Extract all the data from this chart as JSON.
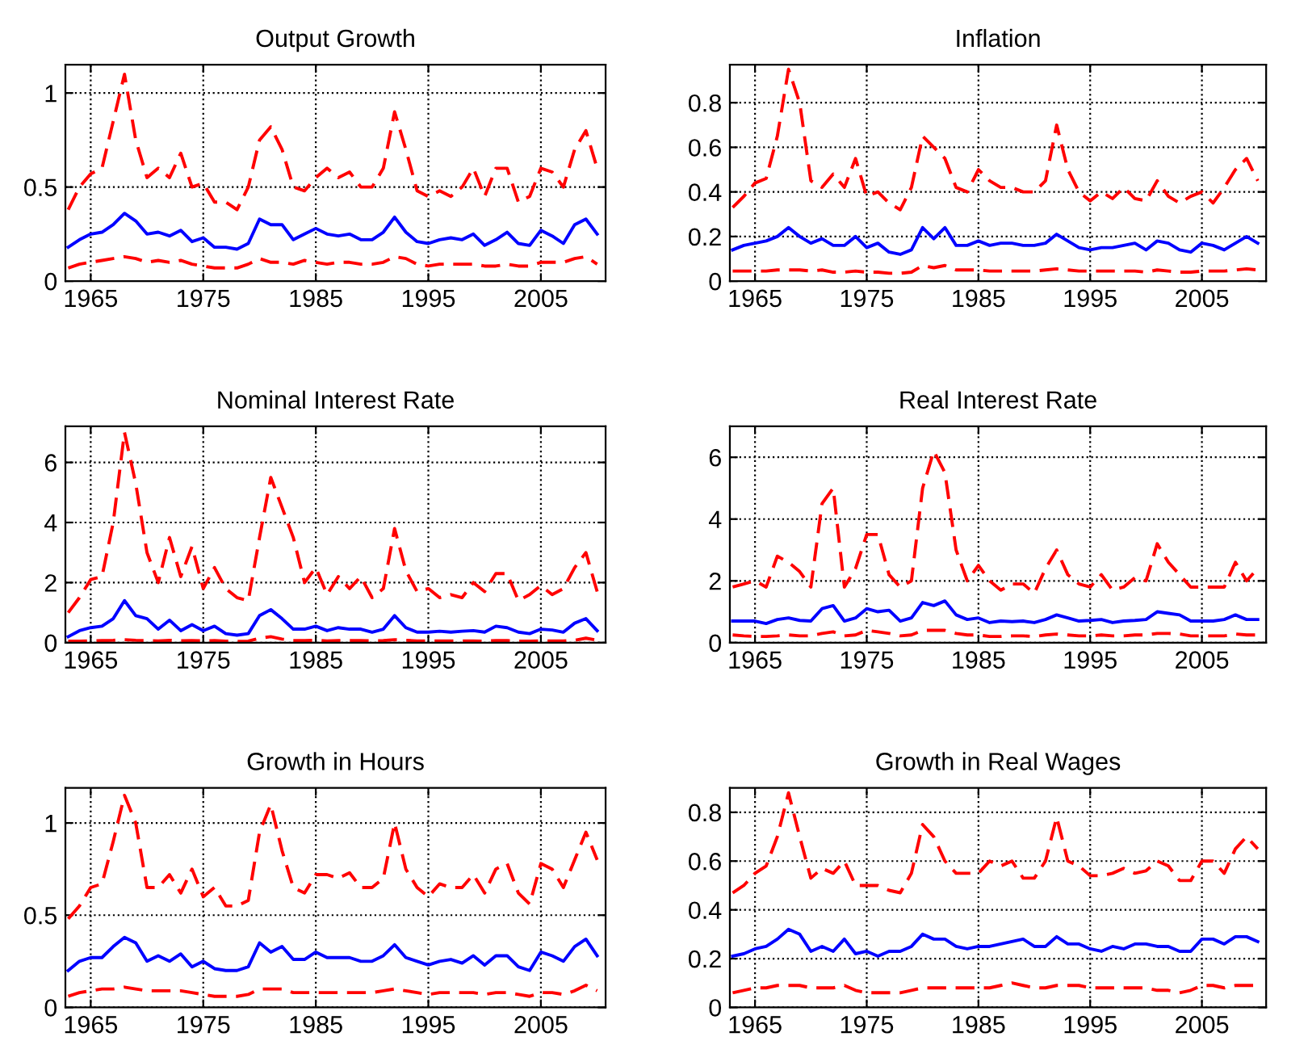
{
  "chart_data": [
    {
      "type": "line",
      "title": "Output Growth",
      "x": [
        1963,
        1964,
        1965,
        1966,
        1967,
        1968,
        1969,
        1970,
        1971,
        1972,
        1973,
        1974,
        1975,
        1976,
        1977,
        1978,
        1979,
        1980,
        1981,
        1982,
        1983,
        1984,
        1985,
        1986,
        1987,
        1988,
        1989,
        1990,
        1991,
        1992,
        1993,
        1994,
        1995,
        1996,
        1997,
        1998,
        1999,
        2000,
        2001,
        2002,
        2003,
        2004,
        2005,
        2006,
        2007,
        2008,
        2009,
        2010
      ],
      "xlim": [
        1962.75,
        2010.75
      ],
      "xticks": [
        1965,
        1975,
        1985,
        1995,
        2005
      ],
      "ylim": [
        0,
        1.15
      ],
      "yticks": [
        0,
        0.5,
        1
      ],
      "grid": true,
      "series": [
        {
          "color": "#ff0000",
          "line_style": "dashed",
          "values": [
            0.38,
            0.5,
            0.57,
            0.6,
            0.85,
            1.1,
            0.75,
            0.55,
            0.6,
            0.55,
            0.68,
            0.5,
            0.52,
            0.42,
            0.42,
            0.38,
            0.5,
            0.75,
            0.82,
            0.7,
            0.5,
            0.48,
            0.55,
            0.6,
            0.55,
            0.58,
            0.5,
            0.5,
            0.6,
            0.9,
            0.7,
            0.48,
            0.45,
            0.48,
            0.45,
            0.5,
            0.6,
            0.45,
            0.6,
            0.6,
            0.42,
            0.45,
            0.6,
            0.58,
            0.5,
            0.7,
            0.8,
            0.6
          ]
        },
        {
          "color": "#0000ff",
          "line_style": "solid",
          "values": [
            0.18,
            0.22,
            0.25,
            0.26,
            0.3,
            0.36,
            0.32,
            0.25,
            0.26,
            0.24,
            0.27,
            0.21,
            0.23,
            0.18,
            0.18,
            0.17,
            0.2,
            0.33,
            0.3,
            0.3,
            0.22,
            0.25,
            0.28,
            0.25,
            0.24,
            0.25,
            0.22,
            0.22,
            0.26,
            0.34,
            0.26,
            0.21,
            0.2,
            0.22,
            0.23,
            0.22,
            0.25,
            0.19,
            0.22,
            0.26,
            0.2,
            0.19,
            0.27,
            0.24,
            0.2,
            0.3,
            0.33,
            0.25
          ]
        },
        {
          "color": "#ff0000",
          "line_style": "dashed",
          "values": [
            0.07,
            0.09,
            0.1,
            0.11,
            0.12,
            0.13,
            0.12,
            0.1,
            0.11,
            0.1,
            0.11,
            0.09,
            0.08,
            0.07,
            0.07,
            0.07,
            0.09,
            0.12,
            0.1,
            0.1,
            0.09,
            0.11,
            0.1,
            0.09,
            0.1,
            0.1,
            0.09,
            0.09,
            0.1,
            0.13,
            0.12,
            0.09,
            0.08,
            0.09,
            0.09,
            0.09,
            0.09,
            0.08,
            0.08,
            0.09,
            0.08,
            0.08,
            0.1,
            0.1,
            0.1,
            0.12,
            0.13,
            0.09
          ]
        }
      ]
    },
    {
      "type": "line",
      "title": "Inflation",
      "x": [
        1963,
        1964,
        1965,
        1966,
        1967,
        1968,
        1969,
        1970,
        1971,
        1972,
        1973,
        1974,
        1975,
        1976,
        1977,
        1978,
        1979,
        1980,
        1981,
        1982,
        1983,
        1984,
        1985,
        1986,
        1987,
        1988,
        1989,
        1990,
        1991,
        1992,
        1993,
        1994,
        1995,
        1996,
        1997,
        1998,
        1999,
        2000,
        2001,
        2002,
        2003,
        2004,
        2005,
        2006,
        2007,
        2008,
        2009,
        2010
      ],
      "xlim": [
        1962.75,
        2010.75
      ],
      "xticks": [
        1965,
        1975,
        1985,
        1995,
        2005
      ],
      "ylim": [
        0,
        0.97
      ],
      "yticks": [
        0,
        0.2,
        0.4,
        0.6,
        0.8
      ],
      "grid": true,
      "series": [
        {
          "color": "#ff0000",
          "line_style": "dashed",
          "values": [
            0.33,
            0.38,
            0.44,
            0.46,
            0.65,
            0.95,
            0.8,
            0.45,
            0.42,
            0.48,
            0.42,
            0.55,
            0.38,
            0.4,
            0.35,
            0.32,
            0.42,
            0.65,
            0.6,
            0.55,
            0.42,
            0.4,
            0.5,
            0.45,
            0.42,
            0.42,
            0.4,
            0.4,
            0.45,
            0.7,
            0.5,
            0.4,
            0.36,
            0.4,
            0.37,
            0.42,
            0.37,
            0.36,
            0.45,
            0.38,
            0.35,
            0.38,
            0.4,
            0.35,
            0.42,
            0.5,
            0.55,
            0.45
          ]
        },
        {
          "color": "#0000ff",
          "line_style": "solid",
          "values": [
            0.14,
            0.16,
            0.17,
            0.18,
            0.2,
            0.24,
            0.2,
            0.17,
            0.19,
            0.16,
            0.16,
            0.2,
            0.15,
            0.17,
            0.13,
            0.12,
            0.14,
            0.24,
            0.19,
            0.24,
            0.16,
            0.16,
            0.18,
            0.16,
            0.17,
            0.17,
            0.16,
            0.16,
            0.17,
            0.21,
            0.18,
            0.15,
            0.14,
            0.15,
            0.15,
            0.16,
            0.17,
            0.14,
            0.18,
            0.17,
            0.14,
            0.13,
            0.17,
            0.16,
            0.14,
            0.17,
            0.2,
            0.17
          ]
        },
        {
          "color": "#ff0000",
          "line_style": "dashed",
          "values": [
            0.045,
            0.045,
            0.045,
            0.045,
            0.05,
            0.05,
            0.05,
            0.045,
            0.05,
            0.04,
            0.04,
            0.045,
            0.04,
            0.04,
            0.035,
            0.035,
            0.04,
            0.07,
            0.06,
            0.07,
            0.05,
            0.05,
            0.05,
            0.045,
            0.045,
            0.045,
            0.045,
            0.045,
            0.05,
            0.055,
            0.05,
            0.045,
            0.045,
            0.045,
            0.045,
            0.045,
            0.045,
            0.04,
            0.05,
            0.045,
            0.04,
            0.04,
            0.045,
            0.045,
            0.045,
            0.05,
            0.055,
            0.05
          ]
        }
      ]
    },
    {
      "type": "line",
      "title": "Nominal Interest Rate",
      "x": [
        1963,
        1964,
        1965,
        1966,
        1967,
        1968,
        1969,
        1970,
        1971,
        1972,
        1973,
        1974,
        1975,
        1976,
        1977,
        1978,
        1979,
        1980,
        1981,
        1982,
        1983,
        1984,
        1985,
        1986,
        1987,
        1988,
        1989,
        1990,
        1991,
        1992,
        1993,
        1994,
        1995,
        1996,
        1997,
        1998,
        1999,
        2000,
        2001,
        2002,
        2003,
        2004,
        2005,
        2006,
        2007,
        2008,
        2009,
        2010
      ],
      "xlim": [
        1962.75,
        2010.75
      ],
      "xticks": [
        1965,
        1975,
        1985,
        1995,
        2005
      ],
      "ylim": [
        0,
        7.2
      ],
      "yticks": [
        0,
        2,
        4,
        6
      ],
      "grid": true,
      "series": [
        {
          "color": "#ff0000",
          "line_style": "dashed",
          "values": [
            1.0,
            1.5,
            2.1,
            2.2,
            4.0,
            7.0,
            5.3,
            3.0,
            2.0,
            3.5,
            2.2,
            3.2,
            1.8,
            2.5,
            1.8,
            1.5,
            1.4,
            3.5,
            5.5,
            4.5,
            3.5,
            2.0,
            2.5,
            1.6,
            2.2,
            1.8,
            2.2,
            1.5,
            1.8,
            3.8,
            2.4,
            1.7,
            1.8,
            1.5,
            1.6,
            1.5,
            2.0,
            1.7,
            2.3,
            2.3,
            1.4,
            1.6,
            1.9,
            1.6,
            1.8,
            2.5,
            3.0,
            1.7
          ]
        },
        {
          "color": "#0000ff",
          "line_style": "solid",
          "values": [
            0.2,
            0.4,
            0.5,
            0.55,
            0.8,
            1.4,
            0.9,
            0.8,
            0.45,
            0.75,
            0.4,
            0.6,
            0.4,
            0.55,
            0.3,
            0.25,
            0.3,
            0.9,
            1.1,
            0.8,
            0.45,
            0.45,
            0.55,
            0.4,
            0.5,
            0.45,
            0.45,
            0.35,
            0.45,
            0.9,
            0.5,
            0.35,
            0.35,
            0.38,
            0.35,
            0.38,
            0.4,
            0.35,
            0.55,
            0.5,
            0.35,
            0.3,
            0.45,
            0.42,
            0.35,
            0.65,
            0.8,
            0.4
          ]
        },
        {
          "color": "#ff0000",
          "line_style": "dashed",
          "values": [
            0.05,
            0.05,
            0.06,
            0.07,
            0.08,
            0.1,
            0.08,
            0.07,
            0.06,
            0.08,
            0.06,
            0.07,
            0.06,
            0.07,
            0.05,
            0.04,
            0.05,
            0.15,
            0.2,
            0.12,
            0.07,
            0.07,
            0.08,
            0.06,
            0.07,
            0.07,
            0.07,
            0.06,
            0.07,
            0.1,
            0.08,
            0.06,
            0.06,
            0.06,
            0.06,
            0.06,
            0.06,
            0.05,
            0.07,
            0.07,
            0.05,
            0.05,
            0.06,
            0.06,
            0.06,
            0.08,
            0.15,
            0.08
          ]
        }
      ]
    },
    {
      "type": "line",
      "title": "Real Interest Rate",
      "x": [
        1963,
        1964,
        1965,
        1966,
        1967,
        1968,
        1969,
        1970,
        1971,
        1972,
        1973,
        1974,
        1975,
        1976,
        1977,
        1978,
        1979,
        1980,
        1981,
        1982,
        1983,
        1984,
        1985,
        1986,
        1987,
        1988,
        1989,
        1990,
        1991,
        1992,
        1993,
        1994,
        1995,
        1996,
        1997,
        1998,
        1999,
        2000,
        2001,
        2002,
        2003,
        2004,
        2005,
        2006,
        2007,
        2008,
        2009,
        2010
      ],
      "xlim": [
        1962.75,
        2010.75
      ],
      "xticks": [
        1965,
        1975,
        1985,
        1995,
        2005
      ],
      "ylim": [
        0,
        7
      ],
      "yticks": [
        0,
        2,
        4,
        6
      ],
      "grid": true,
      "series": [
        {
          "color": "#ff0000",
          "line_style": "dashed",
          "values": [
            1.8,
            1.9,
            2.0,
            1.8,
            2.8,
            2.6,
            2.3,
            1.8,
            4.5,
            5.0,
            1.8,
            2.4,
            3.5,
            3.5,
            2.2,
            1.8,
            2.0,
            5.0,
            6.2,
            5.5,
            3.0,
            2.0,
            2.5,
            2.0,
            1.7,
            1.9,
            1.9,
            1.6,
            2.4,
            3.0,
            2.2,
            1.9,
            1.8,
            2.2,
            1.7,
            1.8,
            2.1,
            2.0,
            3.2,
            2.6,
            2.2,
            1.8,
            1.8,
            1.8,
            1.8,
            2.6,
            2.0,
            2.4
          ]
        },
        {
          "color": "#0000ff",
          "line_style": "solid",
          "values": [
            0.7,
            0.7,
            0.7,
            0.62,
            0.75,
            0.8,
            0.72,
            0.7,
            1.1,
            1.2,
            0.7,
            0.8,
            1.1,
            1.0,
            1.05,
            0.7,
            0.8,
            1.3,
            1.2,
            1.35,
            0.9,
            0.75,
            0.8,
            0.65,
            0.7,
            0.68,
            0.7,
            0.65,
            0.75,
            0.9,
            0.8,
            0.7,
            0.72,
            0.75,
            0.65,
            0.7,
            0.72,
            0.75,
            1.0,
            0.95,
            0.9,
            0.7,
            0.7,
            0.7,
            0.75,
            0.9,
            0.75,
            0.75
          ]
        },
        {
          "color": "#ff0000",
          "line_style": "dashed",
          "values": [
            0.25,
            0.22,
            0.2,
            0.2,
            0.22,
            0.25,
            0.22,
            0.22,
            0.3,
            0.35,
            0.22,
            0.25,
            0.4,
            0.35,
            0.3,
            0.22,
            0.25,
            0.4,
            0.4,
            0.4,
            0.3,
            0.25,
            0.25,
            0.2,
            0.2,
            0.22,
            0.22,
            0.2,
            0.25,
            0.28,
            0.25,
            0.22,
            0.22,
            0.25,
            0.22,
            0.22,
            0.25,
            0.25,
            0.3,
            0.3,
            0.28,
            0.22,
            0.22,
            0.22,
            0.22,
            0.28,
            0.25,
            0.25
          ]
        }
      ]
    },
    {
      "type": "line",
      "title": "Growth in Hours",
      "x": [
        1963,
        1964,
        1965,
        1966,
        1967,
        1968,
        1969,
        1970,
        1971,
        1972,
        1973,
        1974,
        1975,
        1976,
        1977,
        1978,
        1979,
        1980,
        1981,
        1982,
        1983,
        1984,
        1985,
        1986,
        1987,
        1988,
        1989,
        1990,
        1991,
        1992,
        1993,
        1994,
        1995,
        1996,
        1997,
        1998,
        1999,
        2000,
        2001,
        2002,
        2003,
        2004,
        2005,
        2006,
        2007,
        2008,
        2009,
        2010
      ],
      "xlim": [
        1962.75,
        2010.75
      ],
      "xticks": [
        1965,
        1975,
        1985,
        1995,
        2005
      ],
      "ylim": [
        0,
        1.19
      ],
      "yticks": [
        0,
        0.5,
        1
      ],
      "grid": true,
      "series": [
        {
          "color": "#ff0000",
          "line_style": "dashed",
          "values": [
            0.48,
            0.55,
            0.65,
            0.67,
            0.9,
            1.15,
            1.0,
            0.65,
            0.65,
            0.72,
            0.62,
            0.75,
            0.6,
            0.65,
            0.55,
            0.55,
            0.58,
            0.95,
            1.1,
            0.85,
            0.65,
            0.62,
            0.72,
            0.72,
            0.7,
            0.73,
            0.65,
            0.65,
            0.7,
            1.0,
            0.75,
            0.65,
            0.6,
            0.67,
            0.65,
            0.65,
            0.72,
            0.62,
            0.75,
            0.78,
            0.62,
            0.56,
            0.78,
            0.75,
            0.65,
            0.8,
            0.95,
            0.8
          ]
        },
        {
          "color": "#0000ff",
          "line_style": "solid",
          "values": [
            0.2,
            0.25,
            0.27,
            0.27,
            0.33,
            0.38,
            0.35,
            0.25,
            0.28,
            0.25,
            0.29,
            0.22,
            0.25,
            0.21,
            0.2,
            0.2,
            0.22,
            0.35,
            0.3,
            0.33,
            0.26,
            0.26,
            0.3,
            0.27,
            0.27,
            0.27,
            0.25,
            0.25,
            0.28,
            0.34,
            0.27,
            0.25,
            0.23,
            0.25,
            0.26,
            0.24,
            0.28,
            0.23,
            0.28,
            0.28,
            0.22,
            0.2,
            0.3,
            0.28,
            0.25,
            0.33,
            0.37,
            0.28
          ]
        },
        {
          "color": "#ff0000",
          "line_style": "dashed",
          "values": [
            0.06,
            0.08,
            0.09,
            0.1,
            0.1,
            0.11,
            0.1,
            0.09,
            0.09,
            0.09,
            0.09,
            0.08,
            0.07,
            0.06,
            0.06,
            0.06,
            0.07,
            0.1,
            0.1,
            0.1,
            0.08,
            0.08,
            0.08,
            0.08,
            0.08,
            0.08,
            0.08,
            0.08,
            0.09,
            0.1,
            0.09,
            0.08,
            0.07,
            0.08,
            0.08,
            0.08,
            0.08,
            0.07,
            0.08,
            0.08,
            0.07,
            0.06,
            0.08,
            0.08,
            0.07,
            0.09,
            0.12,
            0.09
          ]
        }
      ]
    },
    {
      "type": "line",
      "title": "Growth in Real Wages",
      "x": [
        1963,
        1964,
        1965,
        1966,
        1967,
        1968,
        1969,
        1970,
        1971,
        1972,
        1973,
        1974,
        1975,
        1976,
        1977,
        1978,
        1979,
        1980,
        1981,
        1982,
        1983,
        1984,
        1985,
        1986,
        1987,
        1988,
        1989,
        1990,
        1991,
        1992,
        1993,
        1994,
        1995,
        1996,
        1997,
        1998,
        1999,
        2000,
        2001,
        2002,
        2003,
        2004,
        2005,
        2006,
        2007,
        2008,
        2009,
        2010
      ],
      "xlim": [
        1962.75,
        2010.75
      ],
      "xticks": [
        1965,
        1975,
        1985,
        1995,
        2005
      ],
      "ylim": [
        0,
        0.9
      ],
      "yticks": [
        0,
        0.2,
        0.4,
        0.6,
        0.8
      ],
      "grid": true,
      "series": [
        {
          "color": "#ff0000",
          "line_style": "dashed",
          "values": [
            0.47,
            0.5,
            0.55,
            0.58,
            0.7,
            0.88,
            0.7,
            0.53,
            0.57,
            0.55,
            0.6,
            0.5,
            0.5,
            0.5,
            0.48,
            0.47,
            0.55,
            0.75,
            0.7,
            0.6,
            0.55,
            0.55,
            0.55,
            0.6,
            0.58,
            0.6,
            0.53,
            0.53,
            0.6,
            0.78,
            0.6,
            0.58,
            0.54,
            0.54,
            0.55,
            0.57,
            0.55,
            0.56,
            0.6,
            0.58,
            0.52,
            0.52,
            0.6,
            0.6,
            0.55,
            0.65,
            0.7,
            0.65
          ]
        },
        {
          "color": "#0000ff",
          "line_style": "solid",
          "values": [
            0.21,
            0.22,
            0.24,
            0.25,
            0.28,
            0.32,
            0.3,
            0.23,
            0.25,
            0.23,
            0.28,
            0.22,
            0.23,
            0.21,
            0.23,
            0.23,
            0.25,
            0.3,
            0.28,
            0.28,
            0.25,
            0.24,
            0.25,
            0.25,
            0.26,
            0.27,
            0.28,
            0.25,
            0.25,
            0.29,
            0.26,
            0.26,
            0.24,
            0.23,
            0.25,
            0.24,
            0.26,
            0.26,
            0.25,
            0.25,
            0.23,
            0.23,
            0.28,
            0.28,
            0.26,
            0.29,
            0.29,
            0.27
          ]
        },
        {
          "color": "#ff0000",
          "line_style": "dashed",
          "values": [
            0.06,
            0.07,
            0.08,
            0.08,
            0.09,
            0.09,
            0.09,
            0.08,
            0.08,
            0.08,
            0.09,
            0.07,
            0.06,
            0.06,
            0.06,
            0.06,
            0.07,
            0.08,
            0.08,
            0.08,
            0.08,
            0.08,
            0.08,
            0.08,
            0.09,
            0.1,
            0.09,
            0.08,
            0.08,
            0.09,
            0.09,
            0.09,
            0.08,
            0.08,
            0.08,
            0.08,
            0.08,
            0.08,
            0.07,
            0.07,
            0.06,
            0.07,
            0.09,
            0.09,
            0.08,
            0.09,
            0.09,
            0.09
          ]
        }
      ]
    }
  ]
}
